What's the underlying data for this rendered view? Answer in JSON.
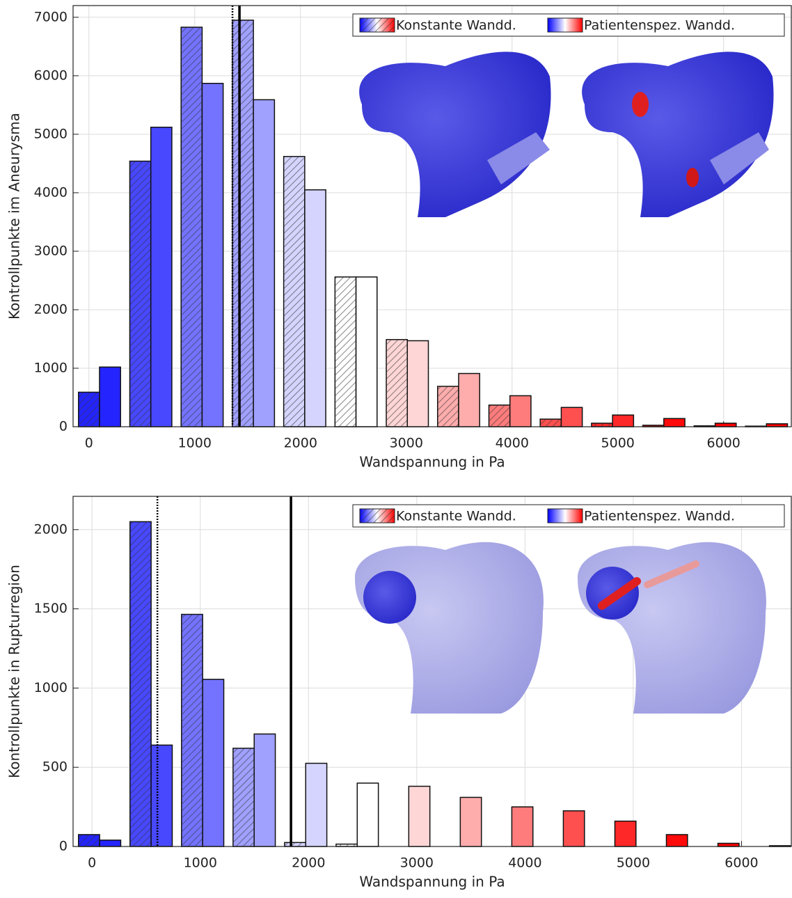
{
  "chart_data": [
    {
      "type": "bar",
      "xlabel": "Wandspannung in Pa",
      "ylabel": "Kontrollpunkte im Aneurysma",
      "x": [
        100,
        585,
        1070,
        1555,
        2040,
        2525,
        3010,
        3495,
        3980,
        4465,
        4950,
        5435,
        5920,
        6405
      ],
      "xlim": [
        -150,
        6640
      ],
      "xticks": [
        0,
        1000,
        2000,
        3000,
        4000,
        5000,
        6000
      ],
      "ylim": [
        0,
        7200
      ],
      "yticks": [
        0,
        1000,
        2000,
        3000,
        4000,
        5000,
        6000,
        7000
      ],
      "grid": true,
      "legend": "upper right",
      "colors": [
        "#2424ff",
        "#4848ff",
        "#7373ff",
        "#a0a0ff",
        "#d4d4ff",
        "#ffffff",
        "#ffd6d6",
        "#ffacac",
        "#ff7c7c",
        "#ff5050",
        "#ff2828",
        "#ff0a0a",
        "#ff0000",
        "#ff0000"
      ],
      "series": [
        {
          "name": "Konstante Wandd.",
          "hatch": true,
          "values": [
            590,
            4540,
            6830,
            6950,
            4620,
            2560,
            1490,
            690,
            370,
            130,
            60,
            25,
            15,
            10
          ]
        },
        {
          "name": "Patientenspez. Wandd.",
          "hatch": false,
          "values": [
            1020,
            5120,
            5870,
            5590,
            4050,
            2560,
            1470,
            910,
            530,
            330,
            200,
            140,
            60,
            50
          ]
        }
      ],
      "vlines": [
        {
          "x": 1357,
          "style": "dotted"
        },
        {
          "x": 1423,
          "style": "solid"
        }
      ]
    },
    {
      "type": "bar",
      "xlabel": "Wandspannung in Pa",
      "ylabel": "Kontrollpunkte in Rupturregion",
      "x": [
        70,
        546,
        1022,
        1498,
        1974,
        2450,
        2926,
        3402,
        3878,
        4354,
        4830,
        5306,
        5782,
        6258
      ],
      "xlim": [
        -175,
        6460
      ],
      "xticks": [
        0,
        1000,
        2000,
        3000,
        4000,
        5000,
        6000
      ],
      "ylim": [
        0,
        2210
      ],
      "yticks": [
        0,
        500,
        1000,
        1500,
        2000
      ],
      "grid": true,
      "legend": "upper right",
      "colors": [
        "#2424ff",
        "#4848ff",
        "#7373ff",
        "#a0a0ff",
        "#d4d4ff",
        "#ffffff",
        "#ffd6d6",
        "#ffacac",
        "#ff7c7c",
        "#ff5050",
        "#ff2828",
        "#ff0a0a",
        "#ff0000",
        "#ff0000"
      ],
      "series": [
        {
          "name": "Konstante Wandd.",
          "hatch": true,
          "values": [
            75,
            2050,
            1465,
            620,
            25,
            15,
            0,
            0,
            0,
            0,
            0,
            0,
            0,
            0
          ]
        },
        {
          "name": "Patientenspez. Wandd.",
          "hatch": false,
          "values": [
            40,
            640,
            1055,
            710,
            525,
            400,
            380,
            310,
            250,
            225,
            160,
            75,
            20,
            5
          ]
        }
      ],
      "vlines": [
        {
          "x": 604,
          "style": "dotted"
        },
        {
          "x": 1838,
          "style": "solid"
        }
      ]
    }
  ]
}
